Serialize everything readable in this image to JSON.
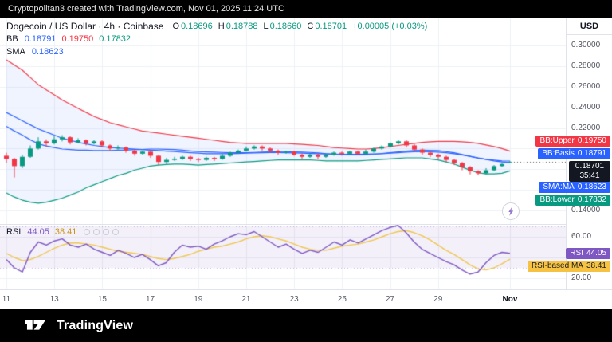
{
  "top_bar": {
    "text": "Cryptopolitan3 created with TradingView.com, Nov 01, 2025 11:24 UTC"
  },
  "header": {
    "symbol_title": "Dogecoin / US Dollar · 4h · Coinbase",
    "ohlc": [
      {
        "k": "O",
        "v": "0.18696"
      },
      {
        "k": "H",
        "v": "0.18788"
      },
      {
        "k": "L",
        "v": "0.18660"
      },
      {
        "k": "C",
        "v": "0.18701"
      }
    ],
    "change": "+0.00005 (+0.03%)",
    "bb": {
      "label": "BB",
      "values": [
        "0.18791",
        "0.19750",
        "0.17832"
      ]
    },
    "sma": {
      "label": "SMA",
      "value": "0.18623"
    }
  },
  "rsi_legend": {
    "label": "RSI",
    "value": "44.05",
    "ma": "38.41"
  },
  "axis": {
    "currency": "USD",
    "price_ticks": [
      {
        "label": "0.30000",
        "value": 0.3
      },
      {
        "label": "0.28000",
        "value": 0.28
      },
      {
        "label": "0.26000",
        "value": 0.26
      },
      {
        "label": "0.24000",
        "value": 0.24
      },
      {
        "label": "0.22000",
        "value": 0.22
      },
      {
        "label": "0.14000",
        "value": 0.14
      }
    ],
    "rsi_ticks": [
      {
        "label": "60.00",
        "value": 60
      },
      {
        "label": "40.00",
        "value": 40
      },
      {
        "label": "20.00",
        "value": 20
      }
    ],
    "time_ticks": [
      {
        "label": "11",
        "i": 0
      },
      {
        "label": "13",
        "i": 6
      },
      {
        "label": "15",
        "i": 12
      },
      {
        "label": "17",
        "i": 18
      },
      {
        "label": "19",
        "i": 24
      },
      {
        "label": "21",
        "i": 30
      },
      {
        "label": "23",
        "i": 36
      },
      {
        "label": "25",
        "i": 42
      },
      {
        "label": "27",
        "i": 48
      },
      {
        "label": "29",
        "i": 54
      },
      {
        "label": "Nov",
        "i": 63,
        "month": true
      }
    ],
    "price_badges": [
      {
        "name": "bb-upper-badge",
        "label": "BB:Upper",
        "value": "0.19750",
        "price": 0.1975,
        "bg": "#F23645",
        "fg": "#ffffff"
      },
      {
        "name": "bb-basis-badge",
        "label": "BB:Basis",
        "value": "0.18791",
        "price": 0.18791,
        "bg": "#2962FF",
        "fg": "#ffffff"
      },
      {
        "name": "last-price-badge",
        "label": "",
        "value": "0.18701",
        "countdown": "35:41",
        "price": 0.18701,
        "bg": "#131722",
        "fg": "#ffffff"
      },
      {
        "name": "sma-badge",
        "label": "SMA:MA",
        "value": "0.18623",
        "price": 0.18623,
        "bg": "#2962FF",
        "fg": "#ffffff"
      },
      {
        "name": "bb-lower-badge",
        "label": "BB:Lower",
        "value": "0.17832",
        "price": 0.17832,
        "bg": "#089981",
        "fg": "#ffffff"
      }
    ],
    "rsi_badges": [
      {
        "name": "rsi-badge",
        "label": "RSI",
        "value": "44.05",
        "rsi": 44.05,
        "bg": "#7E57C2",
        "fg": "#ffffff"
      },
      {
        "name": "rsi-ma-badge",
        "label": "RSI-based MA",
        "value": "38.41",
        "rsi": 38.41,
        "bg": "#F5C243",
        "fg": "#1c1c1c"
      }
    ]
  },
  "footer": {
    "brand": "TradingView"
  },
  "chart_data": {
    "type": "candlestick",
    "title": "Dogecoin / US Dollar · 4h · Coinbase",
    "timeframe": "4h",
    "price_range": [
      0.14,
      0.3
    ],
    "rsi_range": [
      13,
      80
    ],
    "colors": {
      "up": "#089981",
      "down": "#F23645",
      "bb_upper": "#F23645",
      "bb_basis": "#2962FF",
      "bb_lower": "#089981",
      "bb_fill": "rgba(41,98,255,0.07)",
      "sma": "#2962FF",
      "rsi": "#7E57C2",
      "rsi_ma": "#F0C64F",
      "rsi_band_fill": "rgba(126,87,194,0.09)"
    },
    "candles": [
      [
        0.193,
        0.196,
        0.186,
        0.19
      ],
      [
        0.19,
        0.191,
        0.172,
        0.183
      ],
      [
        0.183,
        0.194,
        0.181,
        0.192
      ],
      [
        0.192,
        0.203,
        0.191,
        0.2
      ],
      [
        0.2,
        0.211,
        0.199,
        0.207
      ],
      [
        0.207,
        0.209,
        0.202,
        0.205
      ],
      [
        0.205,
        0.212,
        0.204,
        0.209
      ],
      [
        0.209,
        0.213,
        0.207,
        0.211
      ],
      [
        0.211,
        0.212,
        0.204,
        0.206
      ],
      [
        0.206,
        0.21,
        0.205,
        0.208
      ],
      [
        0.208,
        0.209,
        0.203,
        0.205
      ],
      [
        0.205,
        0.208,
        0.204,
        0.207
      ],
      [
        0.207,
        0.208,
        0.201,
        0.203
      ],
      [
        0.203,
        0.204,
        0.198,
        0.2
      ],
      [
        0.2,
        0.203,
        0.199,
        0.201
      ],
      [
        0.201,
        0.202,
        0.196,
        0.198
      ],
      [
        0.198,
        0.199,
        0.193,
        0.195
      ],
      [
        0.195,
        0.198,
        0.194,
        0.197
      ],
      [
        0.197,
        0.198,
        0.191,
        0.193
      ],
      [
        0.193,
        0.194,
        0.184,
        0.187
      ],
      [
        0.187,
        0.191,
        0.185,
        0.189
      ],
      [
        0.189,
        0.192,
        0.188,
        0.19
      ],
      [
        0.19,
        0.193,
        0.189,
        0.192
      ],
      [
        0.192,
        0.193,
        0.188,
        0.19
      ],
      [
        0.19,
        0.191,
        0.187,
        0.189
      ],
      [
        0.189,
        0.192,
        0.188,
        0.191
      ],
      [
        0.191,
        0.192,
        0.188,
        0.19
      ],
      [
        0.19,
        0.195,
        0.189,
        0.193
      ],
      [
        0.193,
        0.197,
        0.192,
        0.196
      ],
      [
        0.196,
        0.199,
        0.195,
        0.198
      ],
      [
        0.198,
        0.202,
        0.197,
        0.2
      ],
      [
        0.2,
        0.203,
        0.199,
        0.202
      ],
      [
        0.202,
        0.203,
        0.198,
        0.2
      ],
      [
        0.2,
        0.201,
        0.196,
        0.198
      ],
      [
        0.198,
        0.199,
        0.194,
        0.196
      ],
      [
        0.196,
        0.198,
        0.195,
        0.197
      ],
      [
        0.197,
        0.198,
        0.193,
        0.194
      ],
      [
        0.194,
        0.195,
        0.19,
        0.192
      ],
      [
        0.192,
        0.195,
        0.191,
        0.194
      ],
      [
        0.194,
        0.195,
        0.19,
        0.192
      ],
      [
        0.192,
        0.195,
        0.191,
        0.194
      ],
      [
        0.194,
        0.197,
        0.193,
        0.196
      ],
      [
        0.196,
        0.197,
        0.193,
        0.195
      ],
      [
        0.195,
        0.198,
        0.194,
        0.197
      ],
      [
        0.197,
        0.198,
        0.194,
        0.195
      ],
      [
        0.195,
        0.199,
        0.194,
        0.197
      ],
      [
        0.197,
        0.201,
        0.196,
        0.2
      ],
      [
        0.2,
        0.203,
        0.199,
        0.202
      ],
      [
        0.202,
        0.206,
        0.201,
        0.205
      ],
      [
        0.205,
        0.208,
        0.204,
        0.207
      ],
      [
        0.207,
        0.208,
        0.201,
        0.203
      ],
      [
        0.203,
        0.204,
        0.197,
        0.199
      ],
      [
        0.199,
        0.2,
        0.194,
        0.196
      ],
      [
        0.196,
        0.197,
        0.192,
        0.194
      ],
      [
        0.194,
        0.195,
        0.19,
        0.192
      ],
      [
        0.192,
        0.193,
        0.187,
        0.189
      ],
      [
        0.189,
        0.19,
        0.184,
        0.186
      ],
      [
        0.186,
        0.187,
        0.179,
        0.182
      ],
      [
        0.182,
        0.183,
        0.175,
        0.178
      ],
      [
        0.178,
        0.179,
        0.174,
        0.176
      ],
      [
        0.176,
        0.181,
        0.175,
        0.179
      ],
      [
        0.179,
        0.184,
        0.178,
        0.183
      ],
      [
        0.183,
        0.186,
        0.182,
        0.185
      ],
      [
        0.18696,
        0.18788,
        0.1866,
        0.18701
      ]
    ],
    "bb_upper": [
      0.286,
      0.281,
      0.276,
      0.269,
      0.262,
      0.257,
      0.252,
      0.247,
      0.243,
      0.239,
      0.235,
      0.231,
      0.228,
      0.225,
      0.223,
      0.221,
      0.219,
      0.217,
      0.216,
      0.215,
      0.214,
      0.213,
      0.212,
      0.211,
      0.21,
      0.209,
      0.208,
      0.207,
      0.206,
      0.2055,
      0.205,
      0.205,
      0.205,
      0.205,
      0.205,
      0.205,
      0.2045,
      0.204,
      0.2035,
      0.203,
      0.202,
      0.201,
      0.2005,
      0.2,
      0.1995,
      0.1995,
      0.2,
      0.201,
      0.202,
      0.203,
      0.204,
      0.205,
      0.206,
      0.2065,
      0.207,
      0.207,
      0.207,
      0.2065,
      0.206,
      0.205,
      0.2035,
      0.202,
      0.2,
      0.1975
    ],
    "bb_lower": [
      0.157,
      0.153,
      0.15,
      0.148,
      0.147,
      0.148,
      0.15,
      0.152,
      0.155,
      0.158,
      0.162,
      0.165,
      0.168,
      0.171,
      0.174,
      0.176,
      0.179,
      0.181,
      0.183,
      0.184,
      0.1845,
      0.185,
      0.185,
      0.1845,
      0.184,
      0.1845,
      0.185,
      0.1855,
      0.186,
      0.1865,
      0.187,
      0.1875,
      0.188,
      0.1885,
      0.189,
      0.189,
      0.189,
      0.189,
      0.189,
      0.1885,
      0.188,
      0.188,
      0.188,
      0.188,
      0.188,
      0.1885,
      0.189,
      0.1895,
      0.19,
      0.1905,
      0.191,
      0.191,
      0.191,
      0.19,
      0.189,
      0.187,
      0.185,
      0.182,
      0.179,
      0.1765,
      0.1755,
      0.1755,
      0.176,
      0.17832
    ],
    "sma": [
      0.235,
      0.231,
      0.227,
      0.223,
      0.219,
      0.216,
      0.213,
      0.21,
      0.208,
      0.206,
      0.2045,
      0.203,
      0.202,
      0.201,
      0.2005,
      0.2,
      0.1995,
      0.199,
      0.1985,
      0.198,
      0.1975,
      0.197,
      0.1965,
      0.196,
      0.1955,
      0.195,
      0.195,
      0.195,
      0.195,
      0.1952,
      0.1955,
      0.1958,
      0.196,
      0.1962,
      0.1962,
      0.196,
      0.1958,
      0.1955,
      0.1952,
      0.195,
      0.1948,
      0.1946,
      0.1945,
      0.1945,
      0.1945,
      0.1946,
      0.1948,
      0.195,
      0.1955,
      0.196,
      0.1965,
      0.1968,
      0.197,
      0.1968,
      0.1965,
      0.196,
      0.195,
      0.1938,
      0.1925,
      0.191,
      0.1895,
      0.188,
      0.187,
      0.18623
    ],
    "rsi": {
      "band": [
        30,
        70
      ],
      "last": "44.05",
      "ma_last": "38.41",
      "values": [
        38,
        30,
        26,
        45,
        55,
        52,
        56,
        58,
        52,
        50,
        53,
        48,
        45,
        42,
        47,
        44,
        40,
        43,
        38,
        32,
        35,
        45,
        52,
        50,
        51,
        48,
        53,
        56,
        60,
        63,
        62,
        65,
        60,
        55,
        50,
        53,
        48,
        44,
        47,
        45,
        50,
        55,
        52,
        57,
        54,
        58,
        62,
        66,
        69,
        71,
        64,
        55,
        48,
        44,
        40,
        36,
        33,
        28,
        24,
        26,
        35,
        42,
        45,
        44.05
      ],
      "ma": [
        44,
        40,
        37,
        38,
        41,
        45,
        49,
        52,
        54,
        54,
        53,
        52,
        50,
        48,
        46,
        45,
        44,
        43,
        41,
        39,
        38,
        39,
        41,
        43,
        46,
        48,
        50,
        51,
        53,
        55,
        58,
        60,
        61,
        60,
        58,
        56,
        53,
        50,
        48,
        47,
        47,
        49,
        51,
        52,
        53,
        55,
        57,
        60,
        63,
        65,
        66,
        64,
        61,
        57,
        52,
        47,
        43,
        38,
        33,
        29,
        28,
        30,
        34,
        38.41
      ]
    }
  }
}
